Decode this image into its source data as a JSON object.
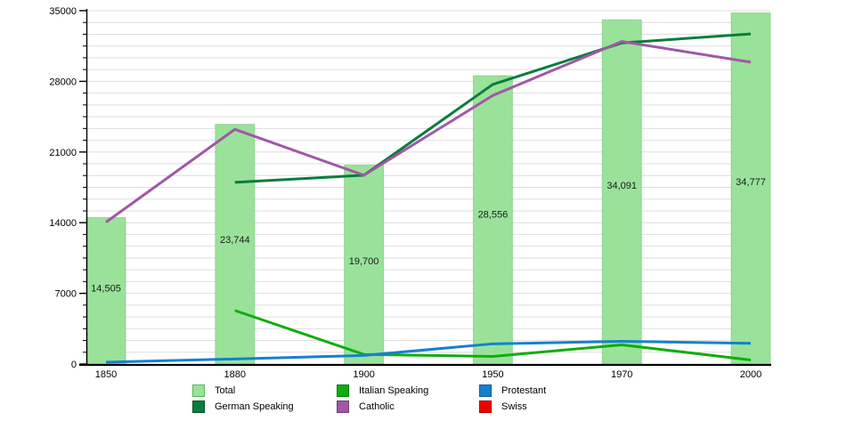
{
  "chart_data": {
    "type": "bar",
    "subtype": "bar-and-line-combo",
    "categories": [
      "1850",
      "1880",
      "1900",
      "1950",
      "1970",
      "2000"
    ],
    "series": [
      {
        "name": "Total",
        "kind": "bar",
        "color": "#9ae29a",
        "border_color": "#5cb85c",
        "values": [
          14505,
          23744,
          19700,
          28556,
          34091,
          34777
        ],
        "data_labels": [
          "14,505",
          "23,744",
          "19,700",
          "28,556",
          "34,091",
          "34,777"
        ]
      },
      {
        "name": "German Speaking",
        "kind": "line",
        "color": "#0b7c3e",
        "values": [
          null,
          18000,
          18700,
          27700,
          31800,
          32700
        ]
      },
      {
        "name": "Italian Speaking",
        "kind": "line",
        "color": "#10ad10",
        "values": [
          null,
          5300,
          950,
          750,
          1900,
          400
        ]
      },
      {
        "name": "Catholic",
        "kind": "line",
        "color": "#a257a6",
        "values": [
          14050,
          23250,
          18700,
          26600,
          31950,
          29900
        ]
      },
      {
        "name": "Protestant",
        "kind": "line",
        "color": "#1581cd",
        "values": [
          180,
          500,
          850,
          2000,
          2250,
          2050
        ]
      },
      {
        "name": "Swiss",
        "kind": "line",
        "color": "#ee0000",
        "values": [
          null,
          null,
          null,
          null,
          null,
          null
        ]
      }
    ],
    "ylim": [
      0,
      35000
    ],
    "y_ticks": [
      0,
      7000,
      14000,
      21000,
      28000,
      35000
    ],
    "y_tick_labels": [
      "0",
      "7000",
      "14000",
      "21000",
      "28000",
      "35000"
    ],
    "x_tick_labels": [
      "1850",
      "1880",
      "1900",
      "1950",
      "1970",
      "2000"
    ],
    "grid": {
      "horizontal": true,
      "vertical": false,
      "minor_divisions_per_major": 6,
      "color": "#dedede"
    },
    "legend_position": "bottom"
  },
  "legend": {
    "items": [
      {
        "label": "Total",
        "color": "#9ae29a",
        "border": "#5cb85c"
      },
      {
        "label": "Italian Speaking",
        "color": "#10ad10",
        "border": "#0a7a0a"
      },
      {
        "label": "Protestant",
        "color": "#1581cd",
        "border": "#0e5c96"
      },
      {
        "label": "German Speaking",
        "color": "#0b7c3e",
        "border": "#064d26"
      },
      {
        "label": "Catholic",
        "color": "#a257a6",
        "border": "#723a77"
      },
      {
        "label": "Swiss",
        "color": "#ee0000",
        "border": "#a50000"
      }
    ]
  },
  "axes": {
    "text_color": "#000000",
    "axis_color": "#000000",
    "label_color": "#1a1a1a"
  }
}
